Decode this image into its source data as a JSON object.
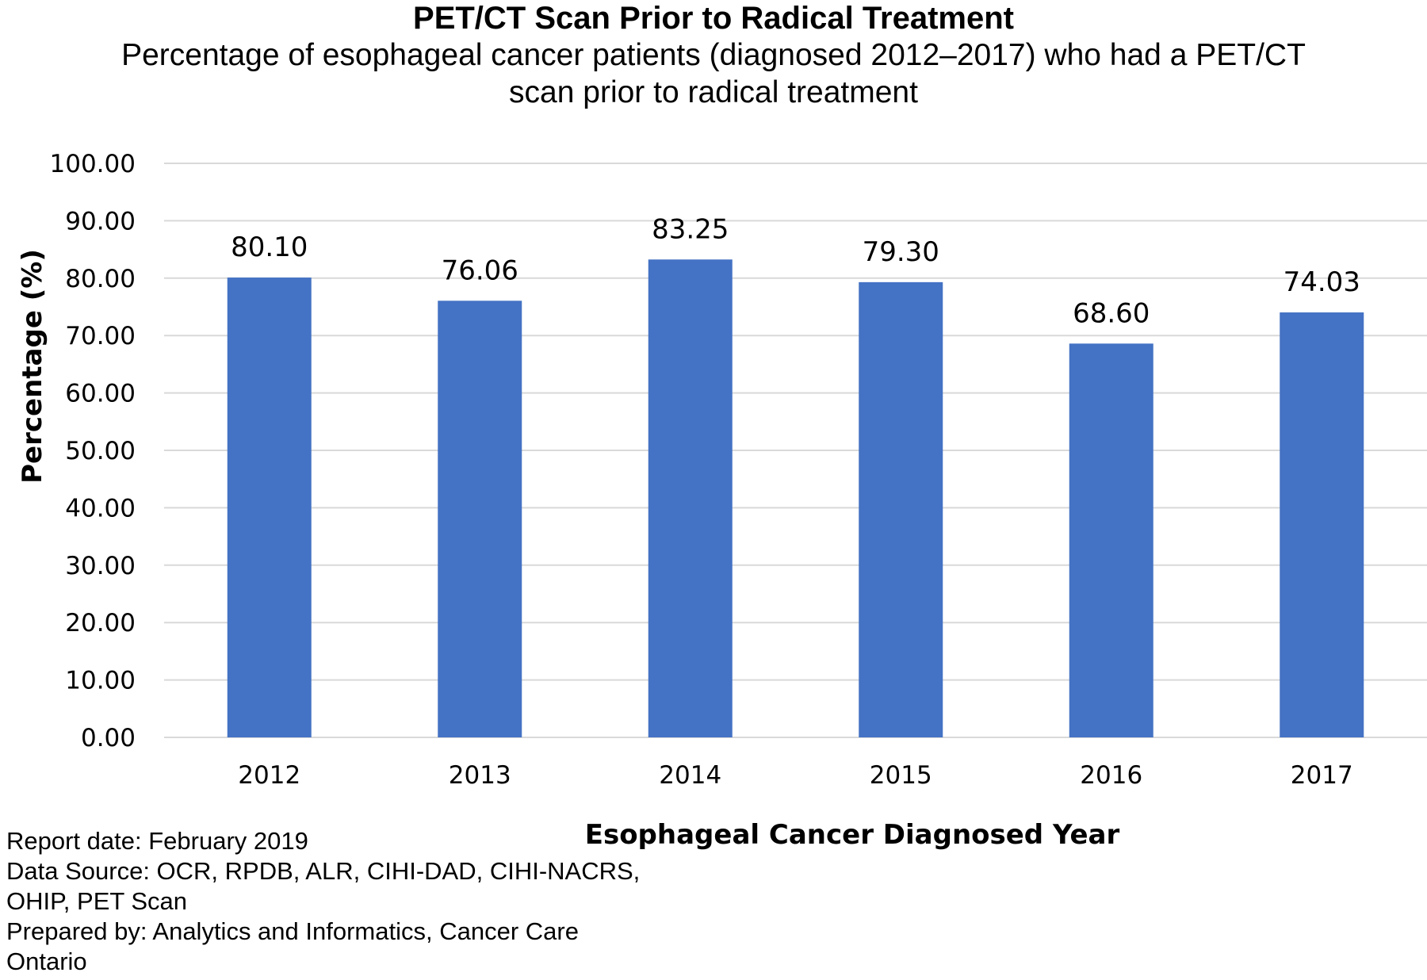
{
  "chart_data": {
    "type": "bar",
    "title": "PET/CT Scan Prior to Radical Treatment",
    "subtitle": "Percentage of esophageal cancer patients (diagnosed 2012–2017) who had a PET/CT scan prior to radical treatment",
    "categories": [
      "2012",
      "2013",
      "2014",
      "2015",
      "2016",
      "2017"
    ],
    "values": [
      80.1,
      76.06,
      83.25,
      79.3,
      68.6,
      74.03
    ],
    "value_labels": [
      "80.10",
      "76.06",
      "83.25",
      "79.30",
      "68.60",
      "74.03"
    ],
    "xlabel": "Esophageal Cancer Diagnosed Year",
    "ylabel": "Percentage (%)",
    "ylim": [
      0,
      100
    ],
    "yticks": [
      "0.00",
      "10.00",
      "20.00",
      "30.00",
      "40.00",
      "50.00",
      "60.00",
      "70.00",
      "80.00",
      "90.00",
      "100.00"
    ],
    "grid": true,
    "bar_color": "#4472C4",
    "grid_color": "#D9D9D9"
  },
  "footnotes": {
    "report_date": "Report date: February 2019",
    "data_source": "Data Source: OCR, RPDB, ALR, CIHI-DAD, CIHI-NACRS, OHIP, PET Scan",
    "prepared_by": "Prepared by: Analytics and Informatics, Cancer Care Ontario"
  }
}
